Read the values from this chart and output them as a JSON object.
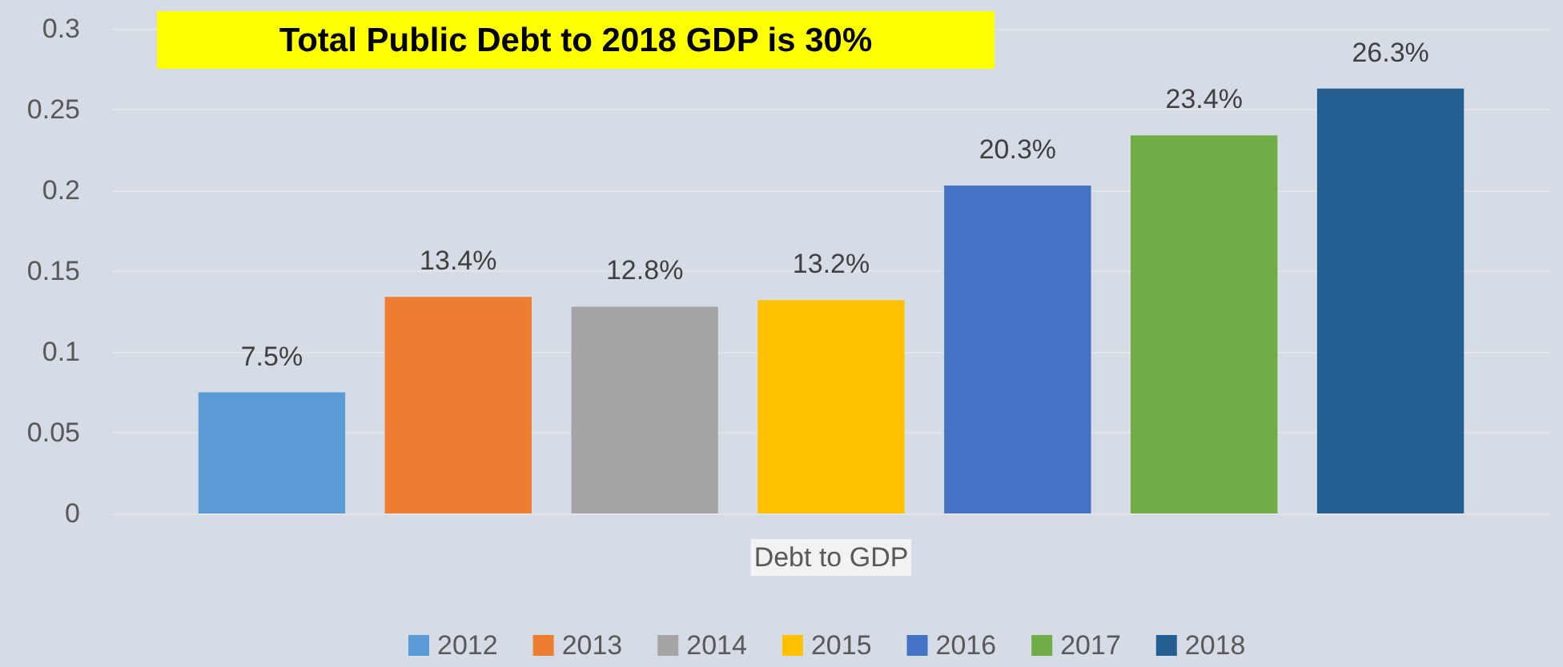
{
  "chart_data": {
    "type": "bar",
    "title": "Total Public Debt to 2018 GDP is 30%",
    "categories": [
      "Debt to GDP"
    ],
    "series": [
      {
        "name": "2012",
        "color": "#5b9bd5",
        "values": [
          0.075
        ],
        "value_labels": [
          "7.5%"
        ]
      },
      {
        "name": "2013",
        "color": "#ed7d31",
        "values": [
          0.134
        ],
        "value_labels": [
          "13.4%"
        ]
      },
      {
        "name": "2014",
        "color": "#a5a5a5",
        "values": [
          0.128
        ],
        "value_labels": [
          "12.8%"
        ]
      },
      {
        "name": "2015",
        "color": "#ffc000",
        "values": [
          0.132
        ],
        "value_labels": [
          "13.2%"
        ]
      },
      {
        "name": "2016",
        "color": "#4472c4",
        "values": [
          0.203
        ],
        "value_labels": [
          "20.3%"
        ]
      },
      {
        "name": "2017",
        "color": "#70ad47",
        "values": [
          0.234
        ],
        "value_labels": [
          "23.4%"
        ]
      },
      {
        "name": "2018",
        "color": "#255e91",
        "values": [
          0.263
        ],
        "value_labels": [
          "26.3%"
        ]
      }
    ],
    "ylim": [
      0,
      0.3
    ],
    "yticks": [
      0,
      0.05,
      0.1,
      0.15,
      0.2,
      0.25,
      0.3
    ],
    "grid": "y",
    "legend": "bottom"
  }
}
